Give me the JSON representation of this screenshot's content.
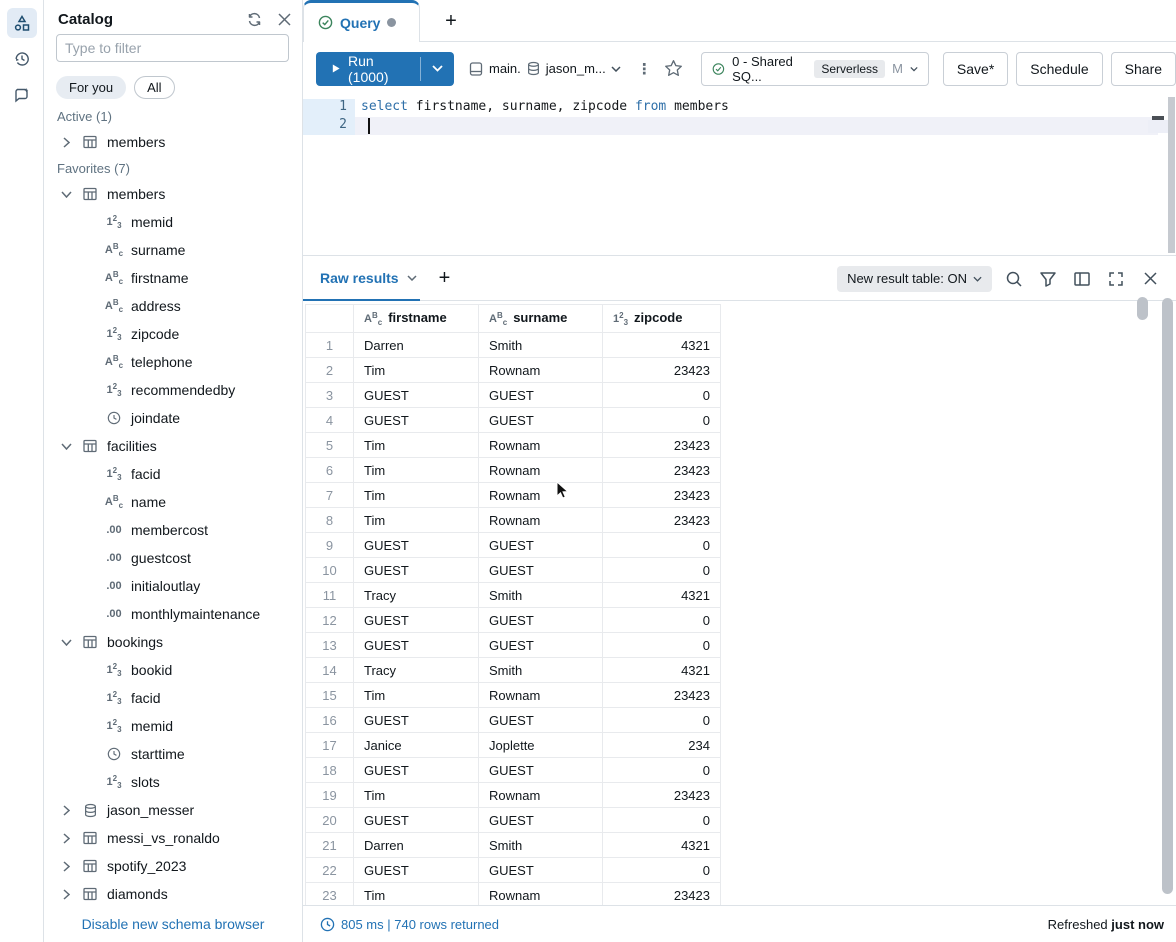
{
  "rail": {
    "items": [
      {
        "name": "schema-browser",
        "active": true
      },
      {
        "name": "history",
        "active": false
      },
      {
        "name": "assistant",
        "active": false
      }
    ]
  },
  "catalog": {
    "title": "Catalog",
    "filter_placeholder": "Type to filter",
    "pills": {
      "for_you": "For you",
      "all": "All"
    },
    "tree": [
      {
        "kind": "section",
        "label": "Active (1)"
      },
      {
        "kind": "node",
        "label": "members",
        "icon": "table",
        "chevron": "collapsed",
        "level": 0
      },
      {
        "kind": "section",
        "label": "Favorites (7)"
      },
      {
        "kind": "node",
        "label": "members",
        "icon": "table",
        "chevron": "expanded",
        "level": 0
      },
      {
        "kind": "node",
        "label": "memid",
        "icon": "number",
        "level": 1
      },
      {
        "kind": "node",
        "label": "surname",
        "icon": "string",
        "level": 1
      },
      {
        "kind": "node",
        "label": "firstname",
        "icon": "string",
        "level": 1
      },
      {
        "kind": "node",
        "label": "address",
        "icon": "string",
        "level": 1
      },
      {
        "kind": "node",
        "label": "zipcode",
        "icon": "number",
        "level": 1
      },
      {
        "kind": "node",
        "label": "telephone",
        "icon": "string",
        "level": 1
      },
      {
        "kind": "node",
        "label": "recommendedby",
        "icon": "number",
        "level": 1
      },
      {
        "kind": "node",
        "label": "joindate",
        "icon": "timestamp",
        "level": 1
      },
      {
        "kind": "node",
        "label": "facilities",
        "icon": "table",
        "chevron": "expanded",
        "level": 0
      },
      {
        "kind": "node",
        "label": "facid",
        "icon": "number",
        "level": 1
      },
      {
        "kind": "node",
        "label": "name",
        "icon": "string",
        "level": 1
      },
      {
        "kind": "node",
        "label": "membercost",
        "icon": "decimal",
        "level": 1
      },
      {
        "kind": "node",
        "label": "guestcost",
        "icon": "decimal",
        "level": 1
      },
      {
        "kind": "node",
        "label": "initialoutlay",
        "icon": "decimal",
        "level": 1
      },
      {
        "kind": "node",
        "label": "monthlymaintenance",
        "icon": "decimal",
        "level": 1
      },
      {
        "kind": "node",
        "label": "bookings",
        "icon": "table",
        "chevron": "expanded",
        "level": 0
      },
      {
        "kind": "node",
        "label": "bookid",
        "icon": "number",
        "level": 1
      },
      {
        "kind": "node",
        "label": "facid",
        "icon": "number",
        "level": 1
      },
      {
        "kind": "node",
        "label": "memid",
        "icon": "number",
        "level": 1
      },
      {
        "kind": "node",
        "label": "starttime",
        "icon": "timestamp",
        "level": 1
      },
      {
        "kind": "node",
        "label": "slots",
        "icon": "number",
        "level": 1
      },
      {
        "kind": "node",
        "label": "jason_messer",
        "icon": "database",
        "chevron": "collapsed",
        "level": 0
      },
      {
        "kind": "node",
        "label": "messi_vs_ronaldo",
        "icon": "table",
        "chevron": "collapsed",
        "level": 0
      },
      {
        "kind": "node",
        "label": "spotify_2023",
        "icon": "table",
        "chevron": "collapsed",
        "level": 0
      },
      {
        "kind": "node",
        "label": "diamonds",
        "icon": "table",
        "chevron": "collapsed",
        "level": 0
      }
    ],
    "footer_link": "Disable new schema browser"
  },
  "tabbar": {
    "tab_label": "Query",
    "new_tab_label": "+"
  },
  "toolbar": {
    "run_label": "Run (1000)",
    "context": {
      "catalog": "main.",
      "schema": "jason_m..."
    },
    "warehouse": {
      "label": "0 - Shared SQ...",
      "badge": "Serverless",
      "size": "M"
    },
    "save_label": "Save*",
    "schedule_label": "Schedule",
    "share_label": "Share"
  },
  "editor": {
    "lines": [
      {
        "num": "1",
        "tokens": [
          {
            "text": "select",
            "type": "keyword"
          },
          {
            "text": " firstname, surname, zipcode ",
            "type": "plain"
          },
          {
            "text": "from",
            "type": "keyword"
          },
          {
            "text": " members",
            "type": "plain"
          }
        ]
      },
      {
        "num": "2",
        "tokens": []
      }
    ]
  },
  "results": {
    "tab_label": "Raw results",
    "add_tab_label": "+",
    "new_result_table_label": "New result table: ON",
    "columns": [
      {
        "name": "firstname",
        "type": "string"
      },
      {
        "name": "surname",
        "type": "string"
      },
      {
        "name": "zipcode",
        "type": "number"
      }
    ],
    "rows": [
      [
        "Darren",
        "Smith",
        "4321"
      ],
      [
        "Tim",
        "Rownam",
        "23423"
      ],
      [
        "GUEST",
        "GUEST",
        "0"
      ],
      [
        "GUEST",
        "GUEST",
        "0"
      ],
      [
        "Tim",
        "Rownam",
        "23423"
      ],
      [
        "Tim",
        "Rownam",
        "23423"
      ],
      [
        "Tim",
        "Rownam",
        "23423"
      ],
      [
        "Tim",
        "Rownam",
        "23423"
      ],
      [
        "GUEST",
        "GUEST",
        "0"
      ],
      [
        "GUEST",
        "GUEST",
        "0"
      ],
      [
        "Tracy",
        "Smith",
        "4321"
      ],
      [
        "GUEST",
        "GUEST",
        "0"
      ],
      [
        "GUEST",
        "GUEST",
        "0"
      ],
      [
        "Tracy",
        "Smith",
        "4321"
      ],
      [
        "Tim",
        "Rownam",
        "23423"
      ],
      [
        "GUEST",
        "GUEST",
        "0"
      ],
      [
        "Janice",
        "Joplette",
        "234"
      ],
      [
        "GUEST",
        "GUEST",
        "0"
      ],
      [
        "Tim",
        "Rownam",
        "23423"
      ],
      [
        "GUEST",
        "GUEST",
        "0"
      ],
      [
        "Darren",
        "Smith",
        "4321"
      ],
      [
        "GUEST",
        "GUEST",
        "0"
      ],
      [
        "Tim",
        "Rownam",
        "23423"
      ]
    ]
  },
  "footer": {
    "stats": "805 ms | 740 rows returned",
    "refreshed_prefix": "Refreshed",
    "refreshed_value": "just now"
  },
  "colors": {
    "accent_blue": "#2272B4",
    "keyword_blue": "#2E6FA8",
    "green_check": "#3B845C",
    "gray_text": "#5F7281"
  }
}
